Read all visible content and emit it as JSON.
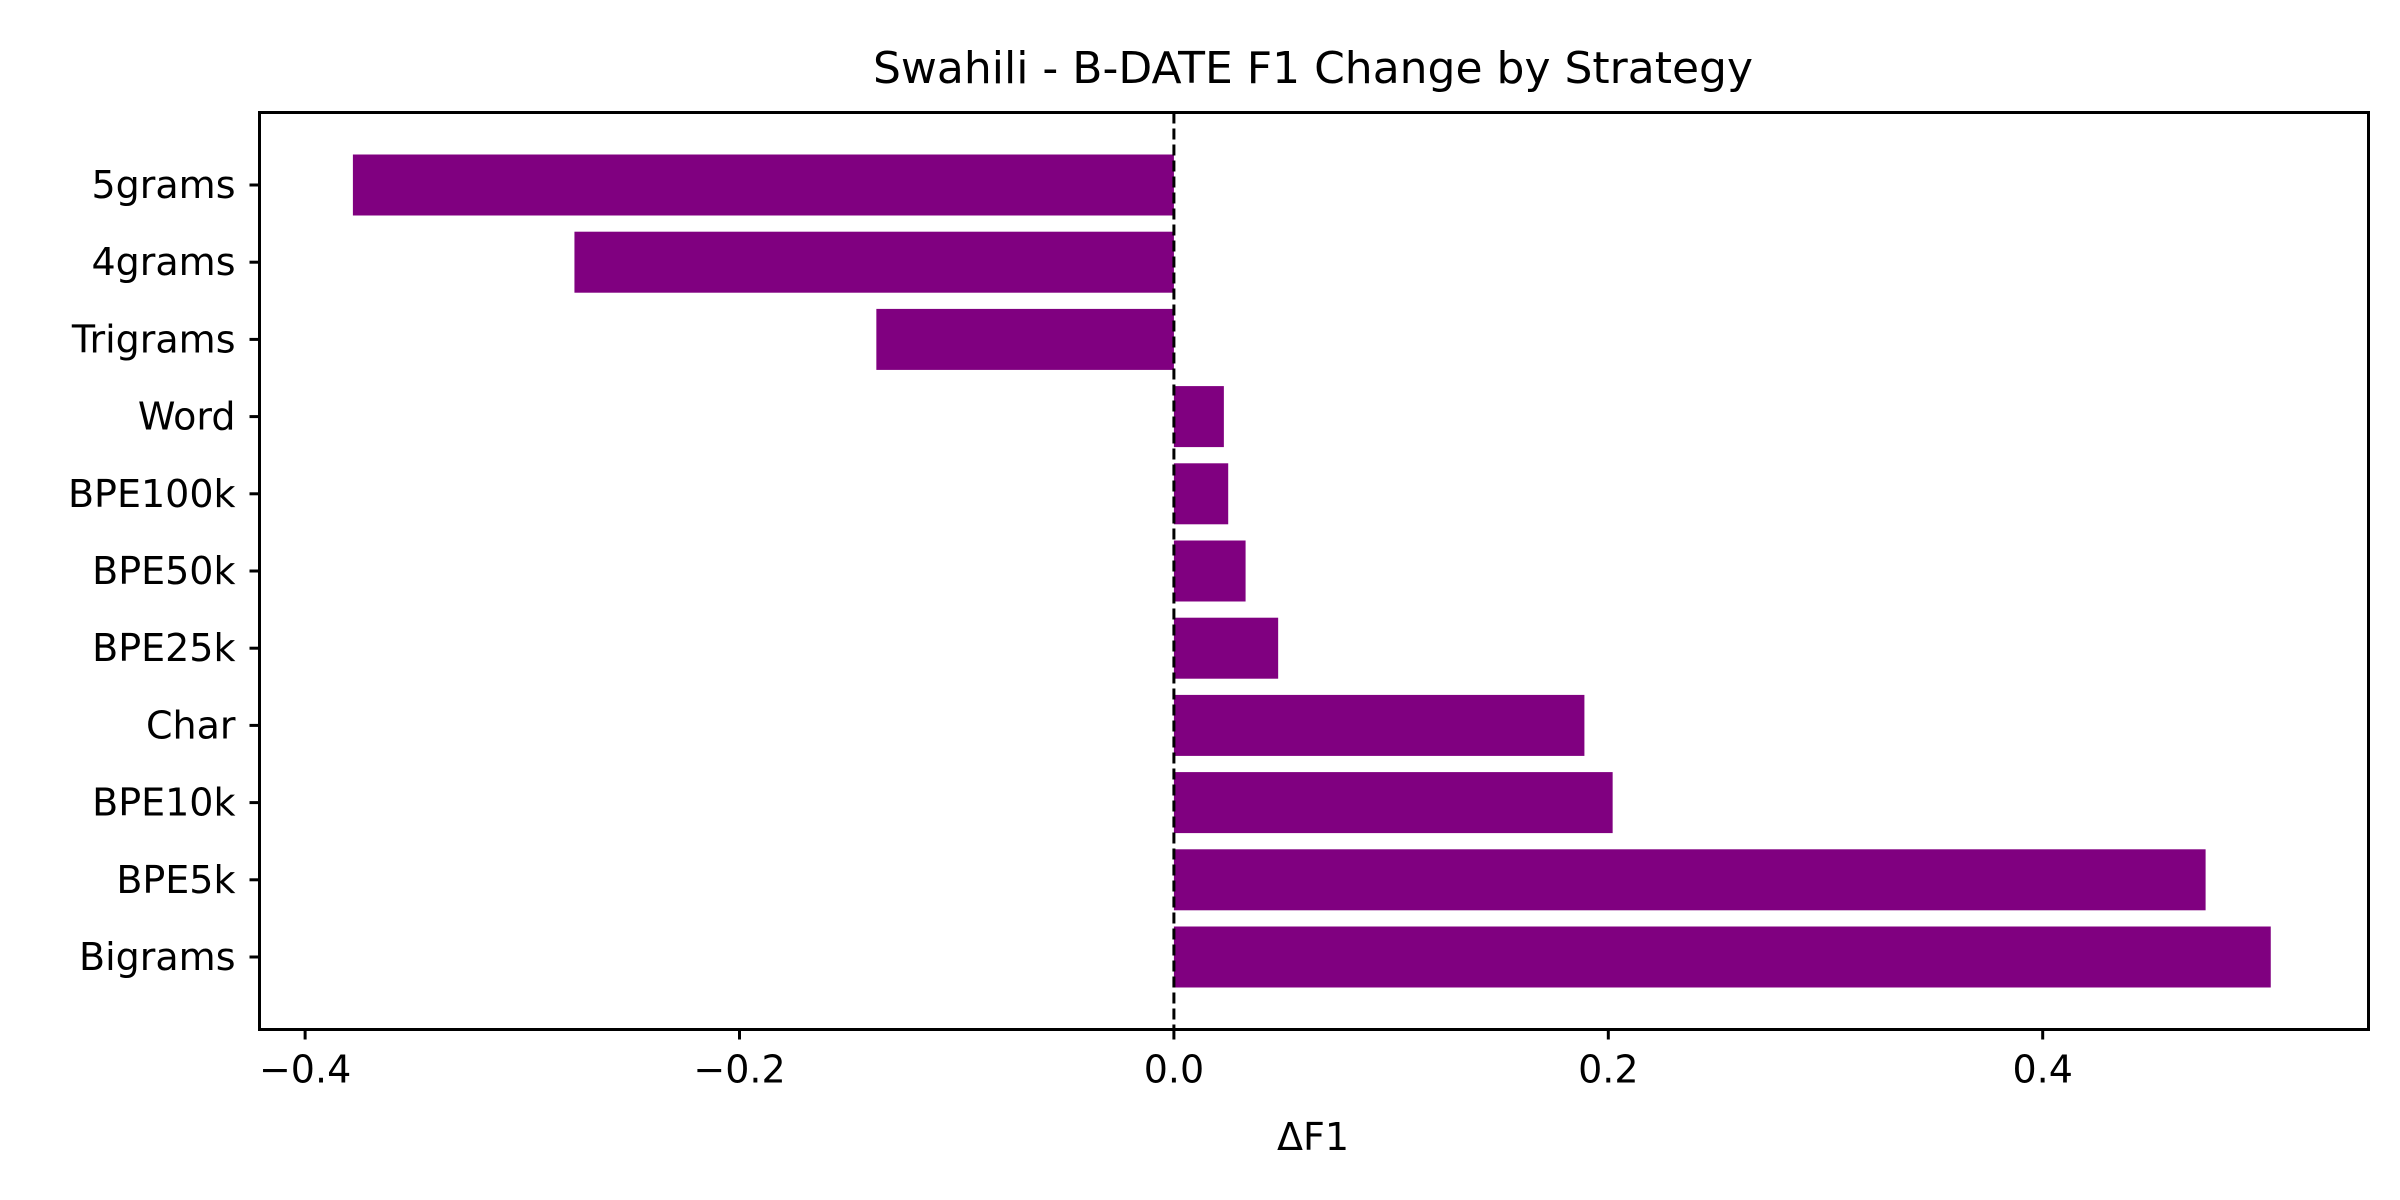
{
  "chart_data": {
    "type": "bar",
    "orientation": "horizontal",
    "title": "Swahili - B-DATE F1 Change by Strategy",
    "xlabel": "ΔF1",
    "ylabel": "",
    "categories": [
      "5grams",
      "4grams",
      "Trigrams",
      "Word",
      "BPE100k",
      "BPE50k",
      "BPE25k",
      "Char",
      "BPE10k",
      "BPE5k",
      "Bigrams"
    ],
    "values": [
      -0.378,
      -0.276,
      -0.137,
      0.023,
      0.025,
      0.033,
      0.048,
      0.189,
      0.202,
      0.475,
      0.505
    ],
    "xlim": [
      -0.421,
      0.55
    ],
    "xticks": [
      -0.4,
      -0.2,
      0.0,
      0.2,
      0.4
    ],
    "xtick_labels": [
      "−0.4",
      "−0.2",
      "0.0",
      "0.2",
      "0.4"
    ],
    "reference_line": {
      "x": 0,
      "style": "dashed",
      "color": "#000000"
    },
    "bar_color": "#800080",
    "grid": false,
    "legend": "none"
  }
}
